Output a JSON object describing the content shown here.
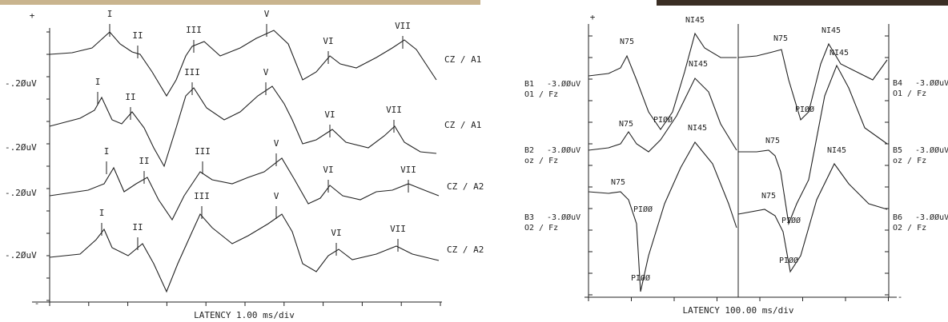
{
  "left_panel": {
    "plus": "+",
    "minus": "-",
    "traces": [
      {
        "scale": "-.2ØuV",
        "montage": "CZ  /  A1",
        "peaks": [
          "I",
          "II",
          "III",
          "V",
          "VI",
          "VII"
        ]
      },
      {
        "scale": "-.2ØuV",
        "montage": "CZ  /  A1",
        "peaks": [
          "I",
          "II",
          "III",
          "V",
          "VI",
          "VII"
        ]
      },
      {
        "scale": "-.2ØuV",
        "montage": "CZ  /  A2",
        "peaks": [
          "I",
          "II",
          "III",
          "V",
          "VI",
          "VII"
        ]
      },
      {
        "scale": "-.2ØuV",
        "montage": "CZ  /  A2",
        "peaks": [
          "I",
          "II",
          "III",
          "V",
          "VI",
          "VII"
        ]
      }
    ],
    "footer": "LATENCY    1.00 ms/div"
  },
  "right_panel": {
    "plus": "+",
    "minus": "-",
    "channels": [
      {
        "id": "B1",
        "scale": "-3.ØØuV",
        "reference": "O1  / Fz",
        "peaks": [
          "N75",
          "PIØØ",
          "NI45"
        ]
      },
      {
        "id": "B2",
        "scale": "-3.ØØuV",
        "reference": "oz  / Fz",
        "peaks": [
          "N75",
          "NI45"
        ]
      },
      {
        "id": "B3",
        "scale": "-3.ØØuV",
        "reference": "O2  / Fz",
        "peaks": [
          "N75",
          "PIØØ",
          "NI45",
          "PIØØ"
        ]
      },
      {
        "id": "B4",
        "scale": "-3.ØØuV",
        "reference": "O1  / Fz",
        "peaks": [
          "N75",
          "PIØØ",
          "NI45"
        ]
      },
      {
        "id": "B5",
        "scale": "-3.ØØuV",
        "reference": "oz  / Fz",
        "peaks": [
          "N75",
          "NI45"
        ]
      },
      {
        "id": "B6",
        "scale": "-3.ØØuV",
        "reference": "O2  / Fz",
        "peaks": [
          "N75",
          "PIØØ",
          "NI45",
          "PIØØ"
        ]
      }
    ],
    "footer": "LATENCY 100.00 ms/div"
  }
}
